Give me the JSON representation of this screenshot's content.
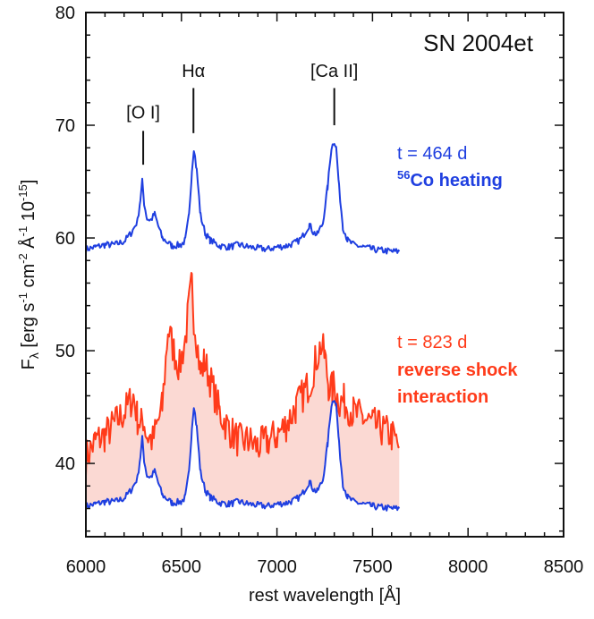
{
  "chart_data": {
    "type": "line",
    "title": "SN 2004et",
    "xlabel": "rest wavelength [Å]",
    "ylabel": {
      "main": "F",
      "sub": "λ",
      "rest": " [erg s",
      "sup1": "-1",
      "p2": " cm",
      "sup2": "-2",
      "p3": " Å",
      "sup3": "-1",
      "p4": " 10",
      "sup4": "-15",
      "p5": "]"
    },
    "xlim": [
      6000,
      8500
    ],
    "ylim": [
      33.5,
      80
    ],
    "x_ticks": [
      6000,
      6500,
      7000,
      7500,
      8000,
      8500
    ],
    "y_ticks": [
      40,
      50,
      60,
      70,
      80
    ],
    "line_ids": [
      {
        "label": "[O I]",
        "x": 6300,
        "y_bottom": 66.5,
        "y_top": 69.5,
        "label_y": 70.6
      },
      {
        "label": "Hα",
        "x": 6563,
        "y_bottom": 69.3,
        "y_top": 73.3,
        "label_y": 74.3
      },
      {
        "label": "[Ca II]",
        "x": 7300,
        "y_bottom": 70.0,
        "y_top": 73.3,
        "label_y": 74.3
      }
    ],
    "series": [
      {
        "time": "t = 464 d",
        "desc_sup": "56",
        "desc": "Co heating",
        "color": "#1f3fe0",
        "x": [
          6000,
          6050,
          6100,
          6150,
          6200,
          6240,
          6270,
          6285,
          6295,
          6305,
          6320,
          6340,
          6360,
          6380,
          6400,
          6450,
          6500,
          6520,
          6540,
          6555,
          6565,
          6580,
          6600,
          6625,
          6650,
          6700,
          6750,
          6800,
          6850,
          6900,
          6950,
          7000,
          7050,
          7100,
          7130,
          7150,
          7170,
          7190,
          7210,
          7240,
          7265,
          7285,
          7300,
          7310,
          7325,
          7345,
          7370,
          7400,
          7450,
          7500,
          7550,
          7600,
          7640
        ],
        "y": [
          59.0,
          59.2,
          59.4,
          59.4,
          59.7,
          60.5,
          61.5,
          63.4,
          65.0,
          63.1,
          61.7,
          61.6,
          62.1,
          61.0,
          60.0,
          59.3,
          59.4,
          59.8,
          62.0,
          66.0,
          68.0,
          66.0,
          62.0,
          60.4,
          59.8,
          59.3,
          59.2,
          59.4,
          59.2,
          59.1,
          59.0,
          59.2,
          59.3,
          59.6,
          60.0,
          60.6,
          61.2,
          60.5,
          60.3,
          61.3,
          64.5,
          68.0,
          68.6,
          68.0,
          64.5,
          61.0,
          59.8,
          59.4,
          59.2,
          59.0,
          58.9,
          58.8,
          58.8
        ]
      },
      {
        "time": "t = 823 d",
        "desc": "reverse shock",
        "desc2": "interaction",
        "color": "#ff3b1a",
        "fill_color": "#fbd9d3",
        "x": [
          6000,
          6050,
          6100,
          6150,
          6200,
          6250,
          6270,
          6290,
          6300,
          6320,
          6350,
          6400,
          6430,
          6460,
          6490,
          6520,
          6540,
          6555,
          6565,
          6580,
          6600,
          6620,
          6650,
          6700,
          6750,
          6800,
          6850,
          6900,
          6950,
          7000,
          7050,
          7100,
          7150,
          7180,
          7200,
          7230,
          7250,
          7270,
          7290,
          7300,
          7310,
          7330,
          7350,
          7400,
          7450,
          7500,
          7550,
          7600,
          7640
        ],
        "y": [
          40.5,
          42.0,
          42.5,
          43.5,
          44.5,
          46.0,
          44.0,
          43.5,
          44.0,
          42.5,
          42.0,
          45.0,
          52.0,
          50.0,
          48.5,
          51.0,
          54.0,
          56.0,
          53.0,
          51.0,
          48.0,
          49.0,
          47.5,
          44.5,
          43.0,
          42.0,
          42.0,
          41.5,
          42.0,
          42.5,
          43.5,
          45.0,
          46.5,
          47.5,
          49.0,
          50.5,
          49.5,
          47.0,
          46.5,
          47.0,
          46.0,
          45.5,
          45.5,
          44.5,
          44.0,
          43.5,
          43.0,
          42.5,
          41.5
        ]
      },
      {
        "time": "",
        "desc": "",
        "color": "#1f3fe0",
        "x": [
          6000,
          6050,
          6100,
          6150,
          6200,
          6240,
          6270,
          6285,
          6295,
          6305,
          6320,
          6340,
          6360,
          6380,
          6400,
          6450,
          6500,
          6520,
          6540,
          6555,
          6565,
          6580,
          6600,
          6625,
          6650,
          6700,
          6750,
          6800,
          6850,
          6900,
          6950,
          7000,
          7050,
          7100,
          7130,
          7150,
          7170,
          7190,
          7210,
          7240,
          7265,
          7285,
          7300,
          7310,
          7325,
          7345,
          7370,
          7400,
          7450,
          7500,
          7550,
          7600,
          7640
        ],
        "y": [
          36.2,
          36.4,
          36.6,
          36.6,
          36.9,
          37.7,
          38.7,
          40.6,
          42.2,
          40.3,
          38.9,
          38.8,
          39.3,
          38.2,
          37.2,
          36.5,
          36.6,
          37.0,
          39.2,
          43.2,
          45.2,
          43.2,
          39.2,
          37.6,
          37.0,
          36.5,
          36.4,
          36.6,
          36.4,
          36.3,
          36.2,
          36.4,
          36.5,
          36.8,
          37.2,
          37.8,
          38.4,
          37.7,
          37.5,
          38.5,
          41.7,
          45.2,
          45.8,
          45.2,
          41.7,
          38.2,
          37.0,
          36.6,
          36.4,
          36.2,
          36.1,
          36.0,
          36.0
        ]
      }
    ],
    "grid": false,
    "legend_placement": "right, next to each spectrum"
  }
}
